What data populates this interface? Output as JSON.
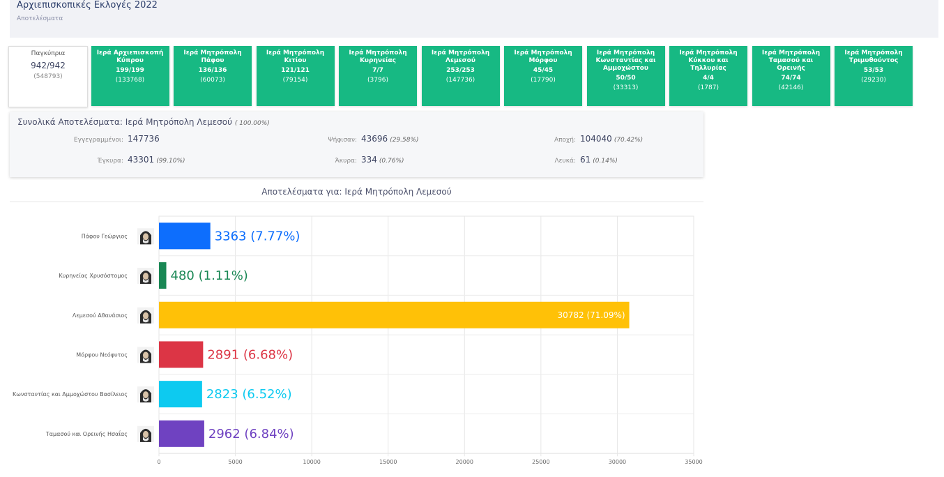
{
  "header": {
    "title": "Αρχιεπισκοπικές Εκλογές 2022",
    "subtitle": "Αποτελέσματα"
  },
  "tiles": [
    {
      "name": "Παγκύπρια",
      "count": "942/942",
      "voters": "(548793)",
      "summary": true
    },
    {
      "name": "Ιερά Αρχιεπισκοπή Κύπρου",
      "count": "199/199",
      "voters": "(133768)"
    },
    {
      "name": "Ιερά Μητρόπολη Πάφου",
      "count": "136/136",
      "voters": "(60073)"
    },
    {
      "name": "Ιερά Μητρόπολη Κιτίου",
      "count": "121/121",
      "voters": "(79154)"
    },
    {
      "name": "Ιερά Μητρόπολη Κυρηνείας",
      "count": "7/7",
      "voters": "(3796)"
    },
    {
      "name": "Ιερά Μητρόπολη Λεμεσού",
      "count": "253/253",
      "voters": "(147736)"
    },
    {
      "name": "Ιερά Μητρόπολη Μόρφου",
      "count": "45/45",
      "voters": "(17790)"
    },
    {
      "name": "Ιερά Μητρόπολη Κωνσταντίας και Αμμοχώστου",
      "count": "50/50",
      "voters": "(33313)"
    },
    {
      "name": "Ιερά Μητρόπολη Κύκκου και Τηλλυρίας",
      "count": "4/4",
      "voters": "(1787)"
    },
    {
      "name": "Ιερά Μητρόπολη Ταμασού και Ορεινής",
      "count": "74/74",
      "voters": "(42146)"
    },
    {
      "name": "Ιερά Μητρόπολη Τριμυθούντος",
      "count": "53/53",
      "voters": "(29230)"
    }
  ],
  "totals": {
    "title": "Συνολικά Αποτελέσματα: Ιερά Μητρόπολη Λεμεσού",
    "pct": "( 100.00%)",
    "registered": {
      "label": "Εγγεγραμμένοι:",
      "value": "147736"
    },
    "voted": {
      "label": "Ψήφισαν:",
      "value": "43696",
      "pct": "(29.58%)"
    },
    "abstention": {
      "label": "Αποχή:",
      "value": "104040",
      "pct": "(70.42%)"
    },
    "valid": {
      "label": "Έγκυρα:",
      "value": "43301",
      "pct": "(99.10%)"
    },
    "invalid": {
      "label": "Άκυρα:",
      "value": "334",
      "pct": "(0.76%)"
    },
    "blank": {
      "label": "Λευκά:",
      "value": "61",
      "pct": "(0.14%)"
    }
  },
  "results_title": "Αποτελέσματα για: Ιερά Μητρόπολη Λεμεσού",
  "chart_data": {
    "type": "bar",
    "orientation": "horizontal",
    "categories": [
      "Πάφου Γεώργιος",
      "Κυρηνείας Χρυσόστομος",
      "Λεμεσού Αθανάσιος",
      "Μόρφου Νεόφυτος",
      "Κωνσταντίας και Αμμοχώστου Βασίλειος",
      "Ταμασού και Ορεινής Ησαΐας"
    ],
    "values": [
      3363,
      480,
      30782,
      2891,
      2823,
      2962
    ],
    "value_labels": [
      "3363 (7.77%)",
      "480 (1.11%)",
      "30782 (71.09%)",
      "2891 (6.68%)",
      "2823 (6.52%)",
      "2962 (6.84%)"
    ],
    "colors": [
      "#0d6efd",
      "#198754",
      "#ffc107",
      "#dc3545",
      "#0dcaf0",
      "#6f42c1"
    ],
    "xlim": [
      0,
      35000
    ],
    "xticks": [
      0,
      5000,
      10000,
      15000,
      20000,
      25000,
      30000,
      35000
    ],
    "grid": true,
    "label_icon": "avatar-icon"
  }
}
